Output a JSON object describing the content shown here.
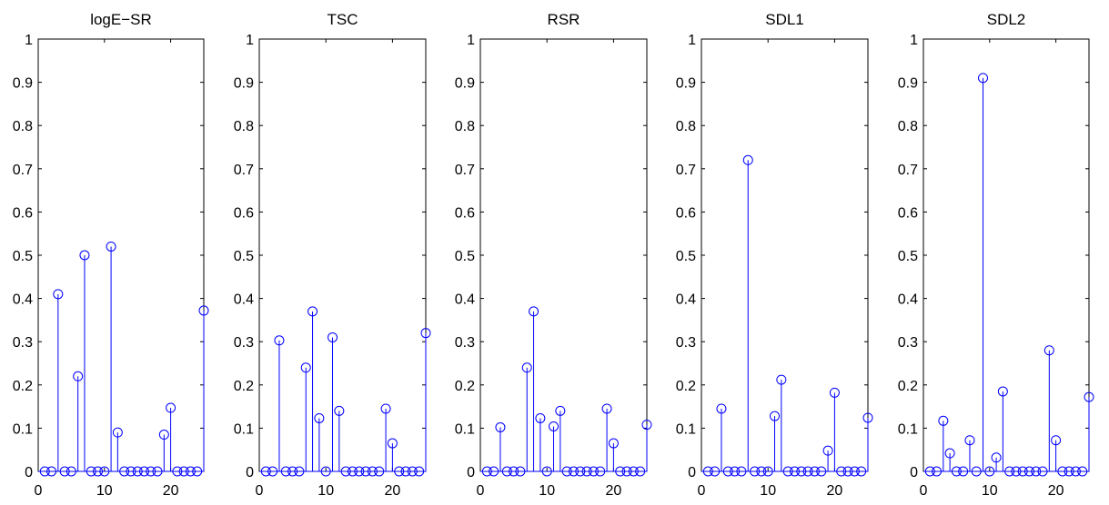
{
  "chart_data": [
    {
      "type": "stem",
      "title": "logE−SR",
      "xlim": [
        0,
        25
      ],
      "ylim": [
        0,
        1
      ],
      "xticks": [
        0,
        10,
        20
      ],
      "yticks": [
        0,
        0.1,
        0.2,
        0.3,
        0.4,
        0.5,
        0.6,
        0.7,
        0.8,
        0.9,
        1
      ],
      "ytick_labels": [
        "0",
        "0.1",
        "0.2",
        "0.3",
        "0.4",
        "0.5",
        "0.6",
        "0.7",
        "0.8",
        "0.9",
        "1"
      ],
      "x": [
        1,
        2,
        3,
        4,
        5,
        6,
        7,
        8,
        9,
        10,
        11,
        12,
        13,
        14,
        15,
        16,
        17,
        18,
        19,
        20,
        21,
        22,
        23,
        24,
        25
      ],
      "values": [
        0,
        0,
        0.41,
        0,
        0,
        0.22,
        0.5,
        0,
        0,
        0,
        0.52,
        0.09,
        0,
        0,
        0,
        0,
        0,
        0,
        0.085,
        0.147,
        0,
        0,
        0,
        0,
        0.372
      ]
    },
    {
      "type": "stem",
      "title": "TSC",
      "xlim": [
        0,
        25
      ],
      "ylim": [
        0,
        1
      ],
      "xticks": [
        0,
        10,
        20
      ],
      "yticks": [
        0,
        0.1,
        0.2,
        0.3,
        0.4,
        0.5,
        0.6,
        0.7,
        0.8,
        0.9,
        1
      ],
      "ytick_labels": [
        "0",
        "0.1",
        "0.2",
        "0.3",
        "0.4",
        "0.5",
        "0.6",
        "0.7",
        "0.8",
        "0.9",
        "1"
      ],
      "x": [
        1,
        2,
        3,
        4,
        5,
        6,
        7,
        8,
        9,
        10,
        11,
        12,
        13,
        14,
        15,
        16,
        17,
        18,
        19,
        20,
        21,
        22,
        23,
        24,
        25
      ],
      "values": [
        0,
        0,
        0.303,
        0,
        0,
        0,
        0.24,
        0.37,
        0.123,
        0,
        0.31,
        0.14,
        0,
        0,
        0,
        0,
        0,
        0,
        0.145,
        0.065,
        0,
        0,
        0,
        0,
        0.32
      ]
    },
    {
      "type": "stem",
      "title": "RSR",
      "xlim": [
        0,
        25
      ],
      "ylim": [
        0,
        1
      ],
      "xticks": [
        0,
        10,
        20
      ],
      "yticks": [
        0,
        0.1,
        0.2,
        0.3,
        0.4,
        0.5,
        0.6,
        0.7,
        0.8,
        0.9,
        1
      ],
      "ytick_labels": [
        "0",
        "0.1",
        "0.2",
        "0.3",
        "0.4",
        "0.5",
        "0.6",
        "0.7",
        "0.8",
        "0.9",
        "1"
      ],
      "x": [
        1,
        2,
        3,
        4,
        5,
        6,
        7,
        8,
        9,
        10,
        11,
        12,
        13,
        14,
        15,
        16,
        17,
        18,
        19,
        20,
        21,
        22,
        23,
        24,
        25
      ],
      "values": [
        0,
        0,
        0.102,
        0,
        0,
        0,
        0.24,
        0.37,
        0.123,
        0,
        0.104,
        0.14,
        0,
        0,
        0,
        0,
        0,
        0,
        0.145,
        0.065,
        0,
        0,
        0,
        0,
        0.108
      ]
    },
    {
      "type": "stem",
      "title": "SDL1",
      "xlim": [
        0,
        25
      ],
      "ylim": [
        0,
        1
      ],
      "xticks": [
        0,
        10,
        20
      ],
      "yticks": [
        0,
        0.1,
        0.2,
        0.3,
        0.4,
        0.5,
        0.6,
        0.7,
        0.8,
        0.9,
        1
      ],
      "ytick_labels": [
        "0",
        "0.1",
        "0.2",
        "0.3",
        "0.4",
        "0.5",
        "0.6",
        "0.7",
        "0.8",
        "0.9",
        "1"
      ],
      "x": [
        1,
        2,
        3,
        4,
        5,
        6,
        7,
        8,
        9,
        10,
        11,
        12,
        13,
        14,
        15,
        16,
        17,
        18,
        19,
        20,
        21,
        22,
        23,
        24,
        25
      ],
      "values": [
        0,
        0,
        0.145,
        0,
        0,
        0,
        0.72,
        0,
        0,
        0,
        0.128,
        0.212,
        0,
        0,
        0,
        0,
        0,
        0,
        0.048,
        0.182,
        0,
        0,
        0,
        0,
        0.124
      ]
    },
    {
      "type": "stem",
      "title": "SDL2",
      "xlim": [
        0,
        25
      ],
      "ylim": [
        0,
        1
      ],
      "xticks": [
        0,
        10,
        20
      ],
      "yticks": [
        0,
        0.1,
        0.2,
        0.3,
        0.4,
        0.5,
        0.6,
        0.7,
        0.8,
        0.9,
        1
      ],
      "ytick_labels": [
        "0",
        "0.1",
        "0.2",
        "0.3",
        "0.4",
        "0.5",
        "0.6",
        "0.7",
        "0.8",
        "0.9",
        "1"
      ],
      "x": [
        1,
        2,
        3,
        4,
        5,
        6,
        7,
        8,
        9,
        10,
        11,
        12,
        13,
        14,
        15,
        16,
        17,
        18,
        19,
        20,
        21,
        22,
        23,
        24,
        25
      ],
      "values": [
        0,
        0,
        0.117,
        0.042,
        0,
        0,
        0.072,
        0,
        0.91,
        0,
        0.032,
        0.185,
        0,
        0,
        0,
        0,
        0,
        0,
        0.28,
        0.072,
        0,
        0,
        0,
        0,
        0.172
      ]
    }
  ],
  "colors": {
    "stem": "#0000ff",
    "axes": "#000000",
    "background": "#ffffff"
  }
}
